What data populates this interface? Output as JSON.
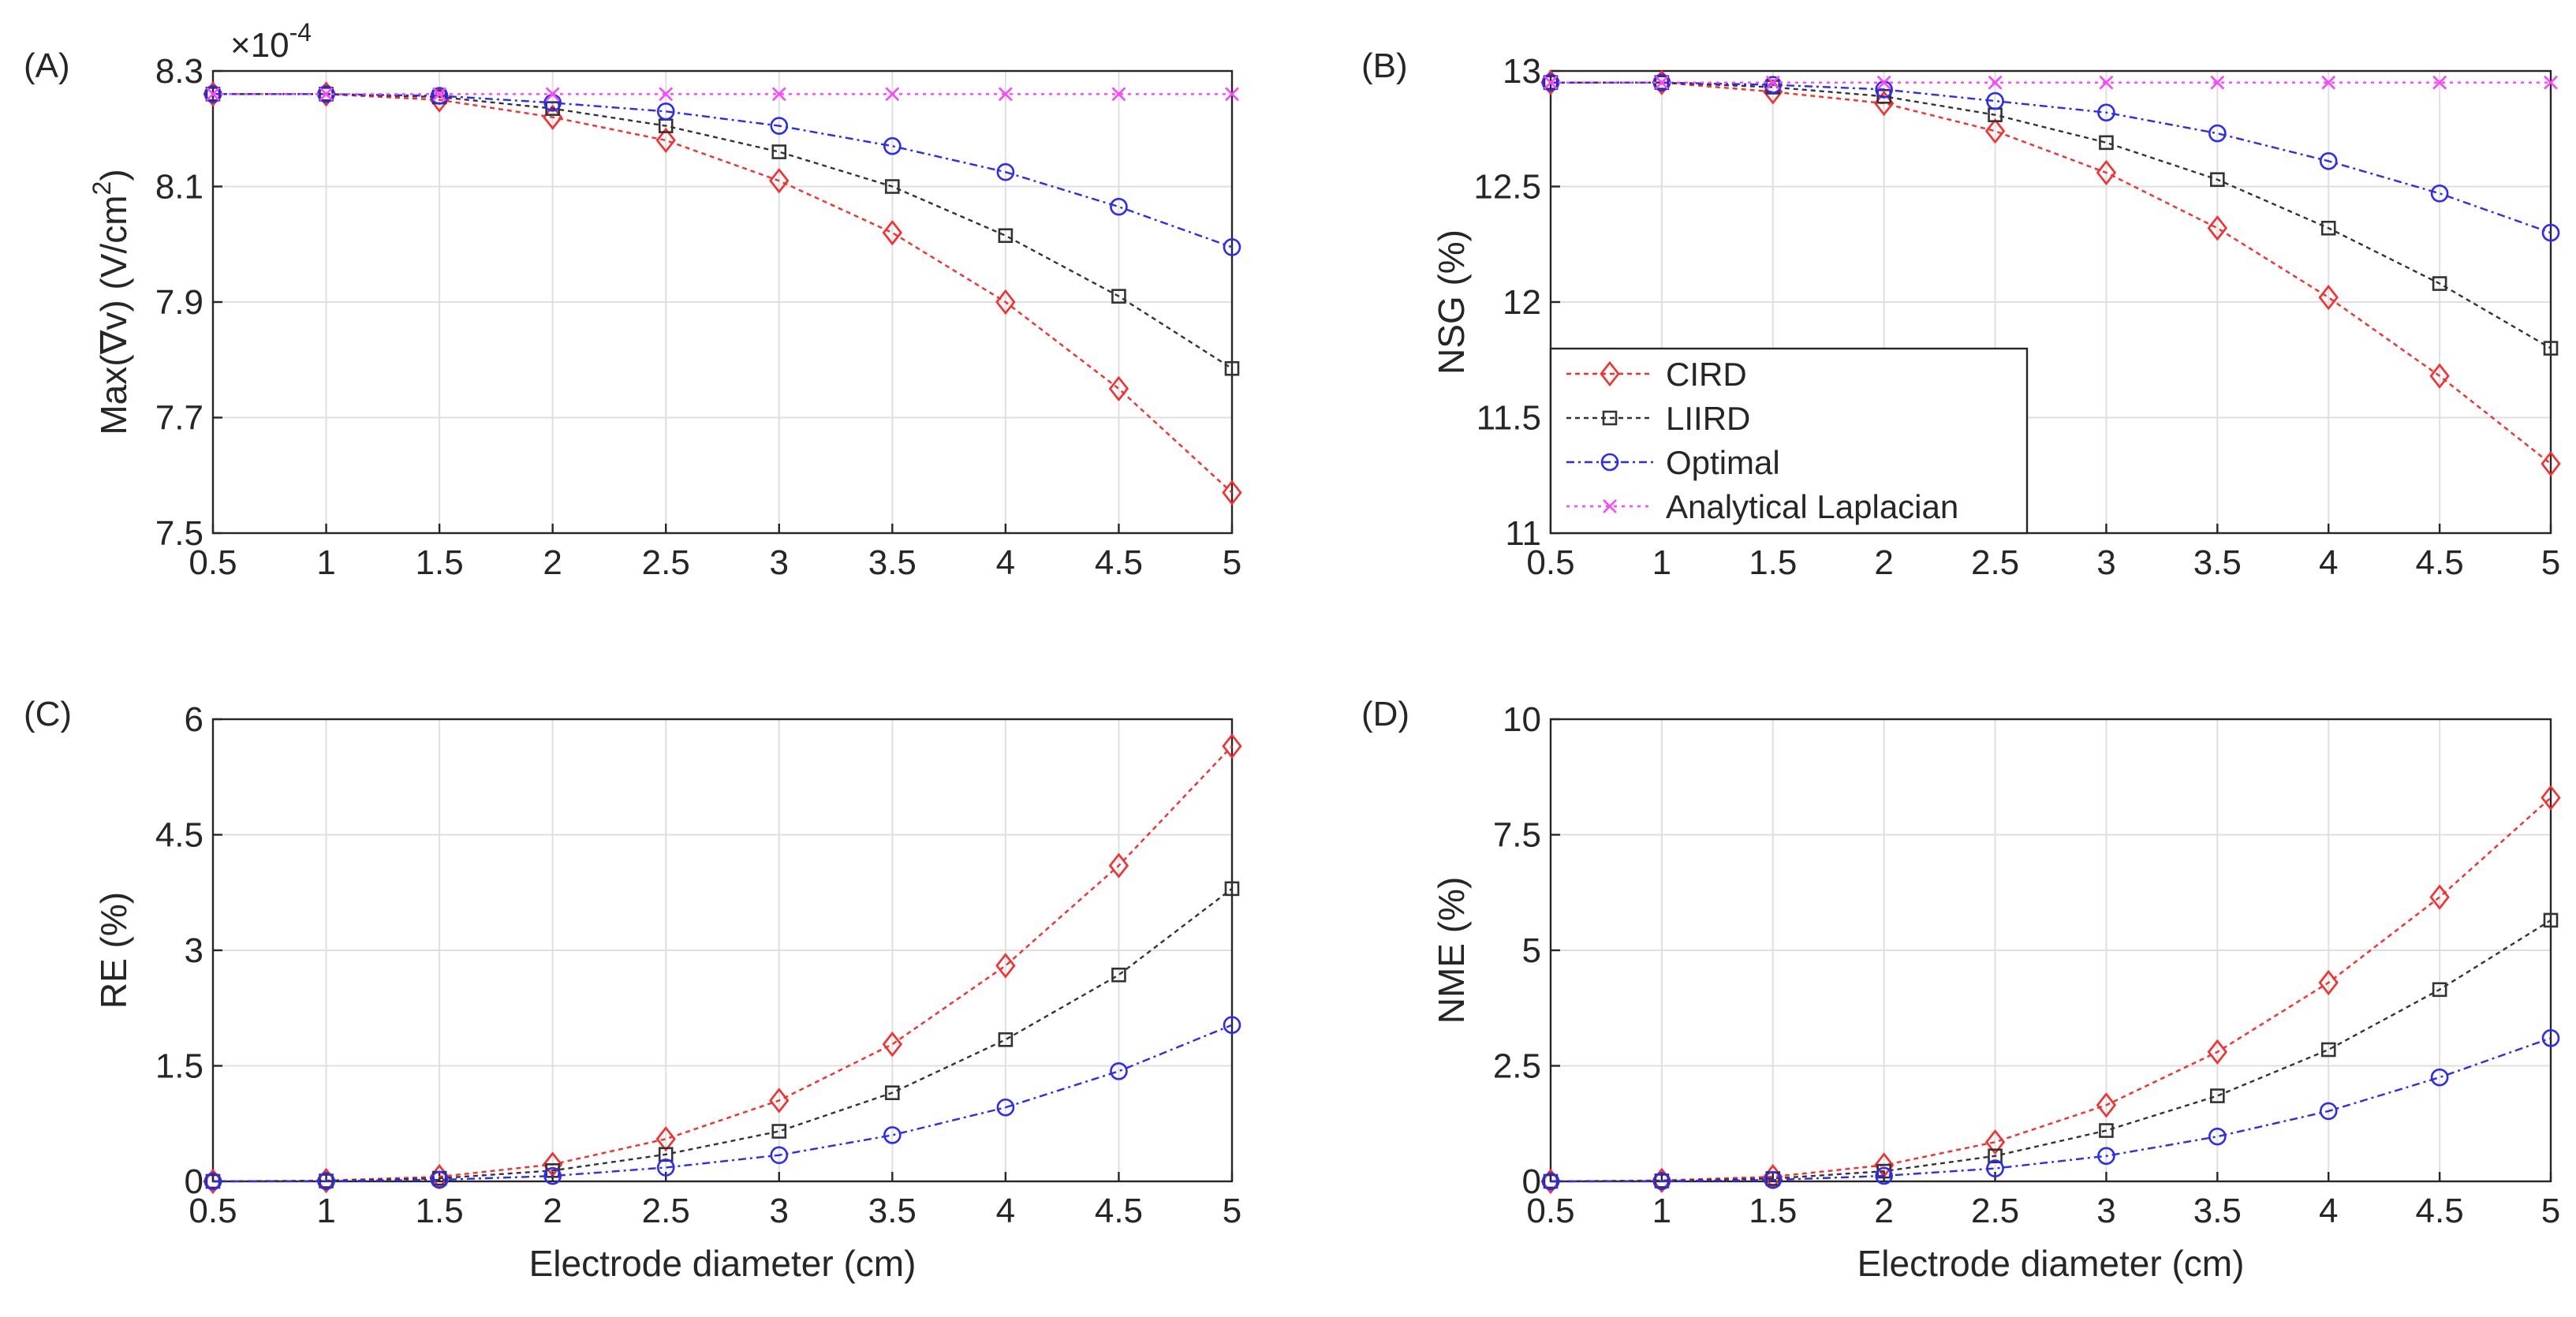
{
  "x_axis_label": "Electrode diameter (cm)",
  "legend": {
    "placement": "inside panel B, lower-left",
    "entries": [
      "CIRD",
      "LIIRD",
      "Optimal",
      "Analytical Laplacian"
    ]
  },
  "series_styles": {
    "CIRD": {
      "color": "#ff2a2a",
      "marker": "diamond"
    },
    "LIIRD": {
      "color": "#333333",
      "marker": "square"
    },
    "Optimal": {
      "color": "#2a2aff",
      "marker": "circle"
    },
    "Analytical Laplacian": {
      "color": "#ff44ff",
      "marker": "x"
    }
  },
  "chart_data": [
    {
      "panel": "(A)",
      "type": "line",
      "ylabel_text": "Max(∇v) (V/cm",
      "ylabel_sup": "2",
      "ylabel_end": ")",
      "exponent_label": "×10",
      "exponent_power": "-4",
      "x": [
        0.5,
        1,
        1.5,
        2,
        2.5,
        3,
        3.5,
        4,
        4.5,
        5
      ],
      "xticks": [
        "0.5",
        "1",
        "1.5",
        "2",
        "2.5",
        "3",
        "3.5",
        "4",
        "4.5",
        "5"
      ],
      "xlim": [
        0.5,
        5
      ],
      "ylim": [
        7.5,
        8.3
      ],
      "yticks": [
        7.5,
        7.7,
        7.9,
        8.1,
        8.3
      ],
      "yticklabels": [
        "7.5",
        "7.7",
        "7.9",
        "8.1",
        "8.3"
      ],
      "grid": true,
      "series": [
        {
          "name": "CIRD",
          "values": [
            8.26,
            8.26,
            8.25,
            8.22,
            8.18,
            8.11,
            8.02,
            7.9,
            7.75,
            7.57
          ]
        },
        {
          "name": "LIIRD",
          "values": [
            8.26,
            8.26,
            8.255,
            8.235,
            8.205,
            8.16,
            8.1,
            8.015,
            7.91,
            7.785
          ]
        },
        {
          "name": "Optimal",
          "values": [
            8.26,
            8.26,
            8.257,
            8.245,
            8.23,
            8.205,
            8.17,
            8.125,
            8.065,
            7.995
          ]
        },
        {
          "name": "Analytical Laplacian",
          "values": [
            8.26,
            8.26,
            8.26,
            8.26,
            8.26,
            8.26,
            8.26,
            8.26,
            8.26,
            8.26
          ]
        }
      ]
    },
    {
      "panel": "(B)",
      "type": "line",
      "ylabel_text": "NSG (%)",
      "x": [
        0.5,
        1,
        1.5,
        2,
        2.5,
        3,
        3.5,
        4,
        4.5,
        5
      ],
      "xticks": [
        "0.5",
        "1",
        "1.5",
        "2",
        "2.5",
        "3",
        "3.5",
        "4",
        "4.5",
        "5"
      ],
      "xlim": [
        0.5,
        5
      ],
      "ylim": [
        11,
        13
      ],
      "yticks": [
        11,
        11.5,
        12,
        12.5,
        13
      ],
      "yticklabels": [
        "11",
        "11.5",
        "12",
        "12.5",
        "13"
      ],
      "grid": true,
      "series": [
        {
          "name": "CIRD",
          "values": [
            12.95,
            12.95,
            12.91,
            12.86,
            12.74,
            12.56,
            12.32,
            12.02,
            11.68,
            11.3
          ]
        },
        {
          "name": "LIIRD",
          "values": [
            12.95,
            12.95,
            12.93,
            12.89,
            12.81,
            12.69,
            12.53,
            12.32,
            12.08,
            11.8
          ]
        },
        {
          "name": "Optimal",
          "values": [
            12.95,
            12.95,
            12.94,
            12.92,
            12.87,
            12.82,
            12.73,
            12.61,
            12.47,
            12.3
          ]
        },
        {
          "name": "Analytical Laplacian",
          "values": [
            12.95,
            12.95,
            12.95,
            12.95,
            12.95,
            12.95,
            12.95,
            12.95,
            12.95,
            12.95
          ]
        }
      ]
    },
    {
      "panel": "(C)",
      "type": "line",
      "ylabel_text": "RE (%)",
      "x": [
        0.5,
        1,
        1.5,
        2,
        2.5,
        3,
        3.5,
        4,
        4.5,
        5
      ],
      "xticks": [
        "0.5",
        "1",
        "1.5",
        "2",
        "2.5",
        "3",
        "3.5",
        "4",
        "4.5",
        "5"
      ],
      "xlim": [
        0.5,
        5
      ],
      "ylim": [
        0,
        6
      ],
      "yticks": [
        0,
        1.5,
        3,
        4.5,
        6
      ],
      "yticklabels": [
        "0",
        "1.5",
        "3",
        "4.5",
        "6"
      ],
      "grid": true,
      "series": [
        {
          "name": "CIRD",
          "values": [
            0,
            0.01,
            0.06,
            0.22,
            0.55,
            1.05,
            1.78,
            2.8,
            4.1,
            5.65
          ]
        },
        {
          "name": "LIIRD",
          "values": [
            0,
            0.005,
            0.04,
            0.14,
            0.35,
            0.65,
            1.15,
            1.84,
            2.68,
            3.8
          ]
        },
        {
          "name": "Optimal",
          "values": [
            0,
            0.003,
            0.02,
            0.07,
            0.18,
            0.34,
            0.6,
            0.96,
            1.43,
            2.03
          ]
        }
      ]
    },
    {
      "panel": "(D)",
      "type": "line",
      "ylabel_text": "NME (%)",
      "x": [
        0.5,
        1,
        1.5,
        2,
        2.5,
        3,
        3.5,
        4,
        4.5,
        5
      ],
      "xticks": [
        "0.5",
        "1",
        "1.5",
        "2",
        "2.5",
        "3",
        "3.5",
        "4",
        "4.5",
        "5"
      ],
      "xlim": [
        0.5,
        5
      ],
      "ylim": [
        0,
        10
      ],
      "yticks": [
        0,
        2.5,
        5,
        7.5,
        10
      ],
      "yticklabels": [
        "0",
        "2.5",
        "5",
        "7.5",
        "10"
      ],
      "grid": true,
      "series": [
        {
          "name": "CIRD",
          "values": [
            0,
            0.02,
            0.1,
            0.35,
            0.85,
            1.65,
            2.8,
            4.3,
            6.15,
            8.3
          ]
        },
        {
          "name": "LIIRD",
          "values": [
            0,
            0.01,
            0.06,
            0.22,
            0.55,
            1.1,
            1.85,
            2.85,
            4.15,
            5.65
          ]
        },
        {
          "name": "Optimal",
          "values": [
            0,
            0.005,
            0.03,
            0.12,
            0.28,
            0.55,
            0.97,
            1.52,
            2.25,
            3.1
          ]
        }
      ]
    }
  ]
}
